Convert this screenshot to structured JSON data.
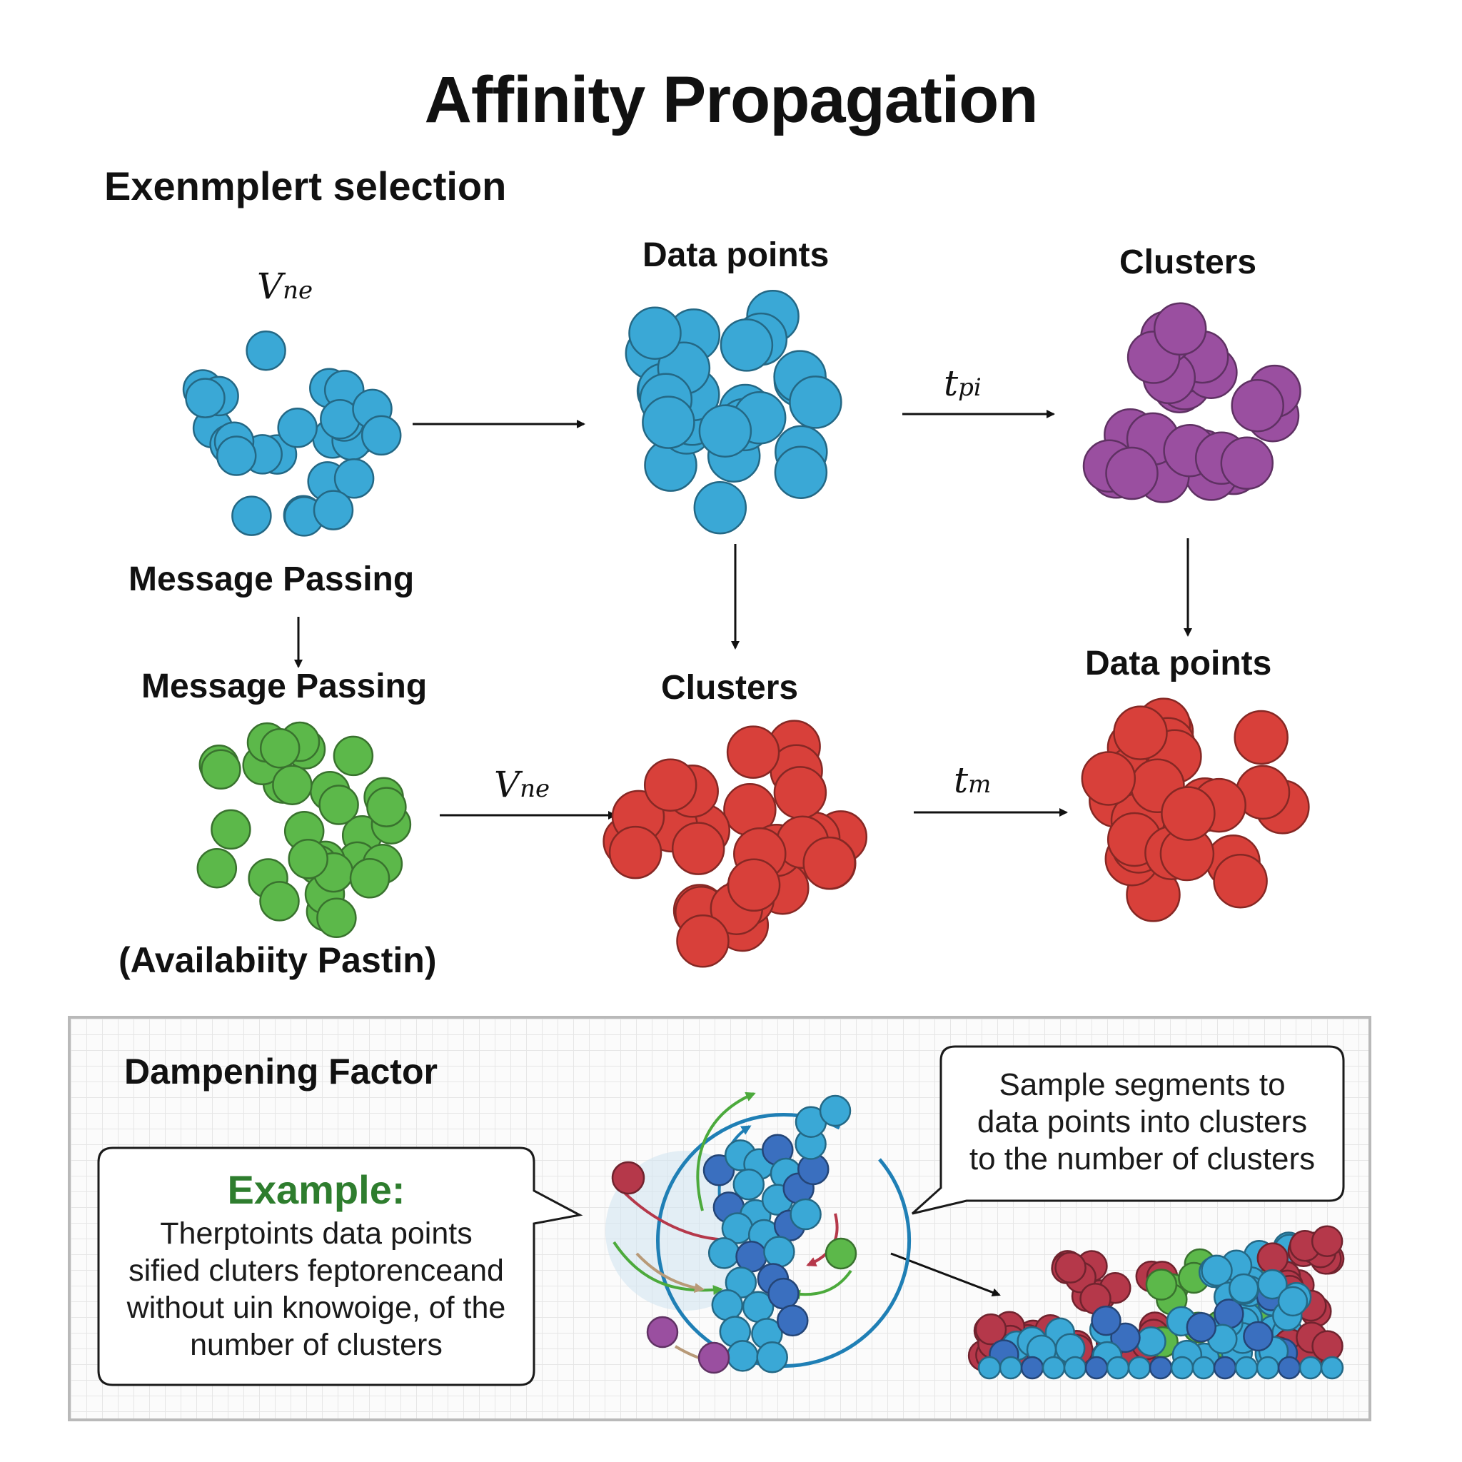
{
  "title": "Affinity Propagation",
  "subtitle": "Exenmplert selection",
  "labels": {
    "vne_top": "V",
    "vne_top_sub": "ne",
    "data_points_top": "Data points",
    "clusters_top": "Clusters",
    "tpi": "t",
    "tpi_sub": "pi",
    "message_passing_1": "Message Passing",
    "message_passing_2": "Message Passing",
    "clusters_mid": "Clusters",
    "data_points_mid": "Data points",
    "vne_mid": "V",
    "vne_mid_sub": "ne",
    "tm": "t",
    "tm_sub": "m",
    "availability": "(Availabiity Pastin)"
  },
  "panel": {
    "heading": "Dampening Factor",
    "example_title": "Example:",
    "example_lines": [
      "Therptoints data points",
      "sified cluters feptorenceand",
      "without uin knowoige, of the",
      "number of clusters"
    ],
    "sample_lines": [
      "Sample segments to",
      "data points into clusters",
      "to the number of clusters"
    ]
  },
  "colors": {
    "blue": "#3aa8d6",
    "purple": "#9a4fa0",
    "green": "#5cb84a",
    "red": "#d8403a",
    "dark_blue": "#3a6fbf",
    "maroon": "#b5384a",
    "ring": "#1f7fb5"
  }
}
